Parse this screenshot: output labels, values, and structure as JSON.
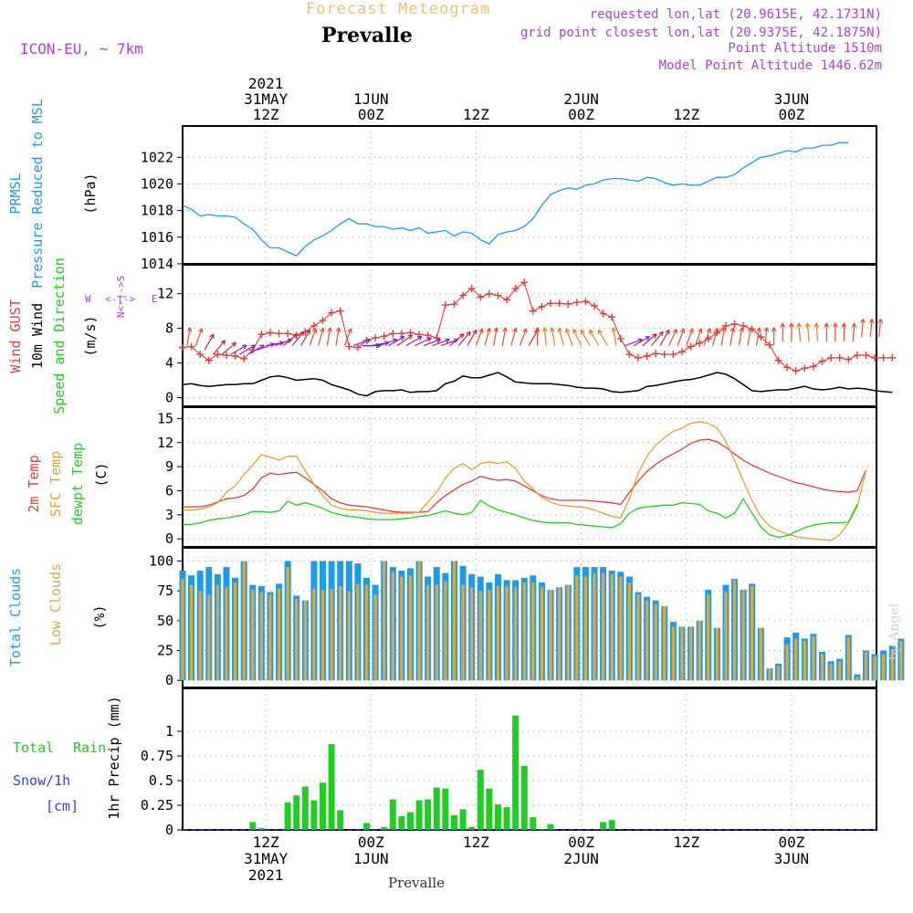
{
  "header": {
    "title": "Forecast Meteogram",
    "location": "Prevalle",
    "model": "ICON-EU, ~ 7km",
    "requested": "requested lon,lat (20.9615E, 42.1731N)",
    "grid_point": "grid point closest lon,lat (20.9375E, 42.1875N)",
    "point_altitude": "Point Altitude 1510m",
    "model_altitude": "Model Point Altitude 1446.62m",
    "footer_location": "Prevalle",
    "watermark": "by Angel"
  },
  "colors": {
    "pressure": "#1e9be6",
    "gust": "#e23c3c",
    "wind": "#000000",
    "temp2m": "#e23c3c",
    "sfc": "#e0a030",
    "dewpt": "#22cc22",
    "total_clouds": "#1e9be6",
    "low_clouds": "#d8a848",
    "rain": "#22cc22",
    "snow": "#3c3ce6",
    "compass": "#aa44cc"
  },
  "chart_data": [
    {
      "type": "line",
      "panel": "pressure",
      "ylabel": [
        "PRMSL",
        "Pressure Reduced to MSL",
        "(hPa)"
      ],
      "ylim": [
        1014,
        1023.8
      ],
      "yticks": [
        1014,
        1016,
        1018,
        1020,
        1022
      ],
      "series": [
        {
          "values": [
            1018.4,
            1018.1,
            1017.6,
            1017.7,
            1017.6,
            1017.6,
            1017.5,
            1017.0,
            1016.6,
            1015.8,
            1015.2,
            1015.2,
            1014.9,
            1014.6,
            1015.3,
            1015.8,
            1016.1,
            1016.5,
            1017.0,
            1017.4,
            1017.0,
            1017.0,
            1016.8,
            1016.8,
            1016.6,
            1016.7,
            1016.5,
            1016.7,
            1016.3,
            1016.4,
            1016.5,
            1016.1,
            1016.4,
            1016.3,
            1015.8,
            1015.5,
            1016.2,
            1016.4,
            1016.5,
            1016.8,
            1017.4,
            1018.4,
            1019.2,
            1019.5,
            1019.7,
            1019.6,
            1019.9,
            1020.0,
            1020.3,
            1020.4,
            1020.4,
            1020.3,
            1020.2,
            1020.5,
            1020.4,
            1020.1,
            1019.9,
            1020.0,
            1019.9,
            1019.9,
            1020.2,
            1020.5,
            1020.5,
            1020.7,
            1021.2,
            1021.6,
            1022.0,
            1022.1,
            1022.3,
            1022.5,
            1022.4,
            1022.7,
            1022.7,
            1022.9,
            1022.9,
            1023.1,
            1023.1
          ]
        }
      ]
    },
    {
      "type": "line",
      "panel": "wind",
      "ylabel": [
        "Wind GUST",
        "10m Wind",
        "Speed and Direction",
        "(m/s)"
      ],
      "compass": {
        "n": "N",
        "s": "S",
        "e": "E",
        "w": "W"
      },
      "ylim": [
        -1,
        14.5
      ],
      "yticks": [
        0,
        4,
        8,
        12
      ],
      "series": [
        {
          "name": "Wind GUST",
          "values": [
            5.8,
            5.9,
            5.0,
            4.3,
            5.0,
            4.9,
            4.8,
            4.5,
            5.5,
            7.3,
            7.5,
            7.4,
            7.4,
            7.2,
            7.6,
            8.3,
            8.9,
            9.8,
            10.0,
            5.9,
            5.8,
            6.6,
            6.9,
            7.1,
            7.4,
            7.4,
            7.5,
            7.3,
            7.2,
            6.9,
            10.7,
            10.8,
            11.8,
            12.6,
            11.6,
            12.0,
            11.8,
            11.3,
            12.6,
            13.3,
            10.0,
            10.5,
            10.9,
            10.9,
            10.8,
            11.0,
            11.1,
            10.6,
            9.7,
            9.3,
            6.8,
            5.0,
            4.6,
            4.8,
            5.1,
            5.0,
            5.0,
            5.3,
            5.9,
            6.3,
            6.8,
            7.5,
            8.3,
            8.5,
            8.3,
            7.9,
            7.0,
            6.1,
            4.3,
            3.5,
            3.1,
            3.4,
            3.6,
            4.2,
            4.6,
            4.6,
            4.4,
            4.9,
            4.9,
            4.6,
            4.6,
            4.6
          ]
        },
        {
          "name": "10m Wind",
          "values": [
            1.5,
            1.6,
            1.4,
            1.3,
            1.4,
            1.5,
            1.5,
            1.6,
            1.6,
            2.0,
            2.4,
            2.5,
            2.3,
            2.0,
            2.1,
            2.2,
            2.0,
            1.5,
            1.2,
            0.9,
            0.4,
            0.2,
            0.7,
            0.8,
            0.8,
            0.9,
            0.6,
            0.7,
            0.7,
            0.8,
            1.6,
            1.9,
            2.5,
            2.3,
            2.3,
            2.6,
            2.9,
            2.4,
            1.8,
            1.7,
            1.6,
            1.6,
            1.6,
            1.5,
            1.4,
            1.2,
            1.1,
            1.1,
            1.0,
            0.7,
            0.6,
            0.7,
            0.8,
            1.3,
            1.4,
            1.6,
            1.8,
            2.0,
            2.1,
            2.3,
            2.6,
            2.9,
            2.7,
            2.2,
            1.5,
            0.8,
            0.7,
            0.8,
            0.9,
            0.9,
            1.1,
            1.3,
            1.0,
            0.9,
            1.0,
            1.2,
            1.0,
            1.1,
            1.0,
            0.8,
            0.7,
            0.6
          ]
        }
      ],
      "arrows_mps": [
        6,
        6,
        5.5,
        5,
        5,
        5,
        5,
        5,
        5.5,
        6,
        6,
        6,
        6,
        6,
        6,
        6,
        6,
        6,
        6,
        6,
        6,
        6,
        6,
        6,
        6,
        6,
        6,
        6,
        6,
        6,
        6,
        6,
        6,
        6,
        6,
        6,
        6,
        6,
        6,
        6,
        6,
        6,
        6,
        6,
        6,
        6,
        6,
        6,
        6,
        6,
        6,
        6,
        6,
        6,
        6,
        6,
        6,
        6,
        6,
        6,
        6,
        6,
        6,
        6,
        6,
        6,
        6,
        6,
        6.5,
        6.5,
        6.5,
        6.5,
        6.5,
        6.5,
        6.5,
        6.5,
        6.5,
        7,
        7,
        7,
        7
      ],
      "arrows_dir": [
        190,
        200,
        210,
        220,
        230,
        240,
        240,
        240,
        250,
        260,
        250,
        230,
        220,
        210,
        200,
        195,
        190,
        190,
        200,
        250,
        270,
        260,
        250,
        240,
        235,
        240,
        245,
        250,
        250,
        250,
        230,
        220,
        210,
        200,
        195,
        190,
        190,
        195,
        200,
        210,
        180,
        175,
        170,
        165,
        160,
        155,
        150,
        150,
        150,
        170,
        250,
        240,
        230,
        220,
        210,
        205,
        200,
        200,
        200,
        200,
        195,
        190,
        190,
        190,
        190,
        190,
        185,
        180,
        180,
        180,
        175,
        175,
        175,
        180,
        180,
        180,
        185,
        185,
        185,
        185
      ]
    },
    {
      "type": "line",
      "panel": "temperature",
      "ylabel": [
        "2m Temp",
        "SFC Temp",
        "dewpt Temp",
        "(C)"
      ],
      "ylim": [
        -1,
        15.5
      ],
      "yticks": [
        0,
        3,
        6,
        9,
        12,
        15
      ],
      "series": [
        {
          "name": "2m Temp",
          "values": [
            4.0,
            4.0,
            4.0,
            4.2,
            4.6,
            5.0,
            5.1,
            5.4,
            6.2,
            7.6,
            8.2,
            8.0,
            8.2,
            8.3,
            7.6,
            6.8,
            6.0,
            5.0,
            4.5,
            4.2,
            4.1,
            4.0,
            3.8,
            3.6,
            3.4,
            3.3,
            3.3,
            3.3,
            3.4,
            4.5,
            5.4,
            6.1,
            6.8,
            7.2,
            7.8,
            7.5,
            7.3,
            7.4,
            7.2,
            6.6,
            6.0,
            5.4,
            5.0,
            4.8,
            4.8,
            4.8,
            4.8,
            4.7,
            4.6,
            4.5,
            4.3,
            5.8,
            7.2,
            8.4,
            9.3,
            10.0,
            10.6,
            11.2,
            11.9,
            12.3,
            12.4,
            12.1,
            11.4,
            10.6,
            9.8,
            9.2,
            8.7,
            8.2,
            7.8,
            7.4,
            7.0,
            6.8,
            6.5,
            6.2,
            6.0,
            5.9,
            5.8,
            6.0,
            8.6
          ]
        },
        {
          "name": "SFC Temp",
          "values": [
            3.6,
            3.6,
            3.7,
            4.0,
            4.5,
            5.8,
            6.6,
            8.0,
            9.2,
            10.5,
            10.2,
            9.8,
            10.3,
            10.3,
            8.5,
            6.8,
            5.4,
            4.2,
            3.8,
            3.6,
            3.6,
            3.5,
            3.3,
            3.2,
            3.2,
            3.2,
            3.2,
            3.3,
            4.6,
            5.8,
            7.6,
            8.8,
            9.4,
            8.6,
            9.4,
            9.6,
            9.4,
            9.6,
            8.8,
            7.2,
            6.2,
            5.2,
            4.6,
            4.2,
            4.1,
            4.0,
            3.9,
            3.6,
            3.2,
            2.8,
            2.6,
            5.0,
            8.2,
            10.3,
            11.7,
            12.6,
            13.4,
            13.8,
            14.4,
            14.6,
            14.4,
            13.8,
            12.2,
            9.8,
            7.2,
            4.8,
            2.8,
            1.6,
            1.0,
            0.6,
            0.3,
            0.1,
            0.0,
            -0.1,
            -0.2,
            0.5,
            2.0,
            4.0,
            8.6
          ]
        },
        {
          "name": "dewpt Temp",
          "values": [
            1.8,
            1.8,
            2.0,
            2.3,
            2.5,
            2.6,
            2.8,
            3.0,
            3.4,
            3.4,
            3.3,
            3.5,
            4.7,
            4.2,
            4.5,
            4.2,
            3.8,
            3.3,
            3.0,
            2.8,
            2.7,
            2.5,
            2.4,
            2.4,
            2.4,
            2.5,
            2.6,
            2.8,
            2.9,
            3.2,
            3.5,
            3.2,
            3.0,
            3.3,
            4.8,
            4.1,
            3.6,
            3.3,
            3.0,
            2.6,
            2.3,
            2.1,
            2.0,
            2.0,
            2.0,
            1.8,
            1.7,
            1.6,
            1.5,
            1.4,
            1.9,
            3.2,
            3.8,
            4.0,
            4.1,
            4.2,
            4.2,
            4.5,
            4.4,
            4.3,
            3.5,
            3.2,
            2.6,
            3.2,
            5.0,
            3.2,
            1.5,
            0.5,
            0.2,
            0.4,
            0.9,
            1.4,
            1.7,
            1.9,
            2.0,
            2.0,
            2.1,
            4.3
          ]
        }
      ]
    },
    {
      "type": "bar",
      "panel": "clouds",
      "ylabel": [
        "Total Clouds",
        "Low Clouds",
        "(%)"
      ],
      "ylim": [
        -6,
        105
      ],
      "yticks": [
        0,
        25,
        50,
        75,
        100
      ],
      "series": [
        {
          "name": "Total Clouds",
          "values": [
            92,
            88,
            92,
            95,
            89,
            95,
            86,
            100,
            80,
            79,
            74,
            81,
            100,
            71,
            67,
            100,
            100,
            100,
            100,
            100,
            98,
            86,
            80,
            100,
            95,
            92,
            94,
            100,
            87,
            95,
            90,
            100,
            96,
            89,
            87,
            82,
            89,
            84,
            84,
            86,
            88,
            82,
            76,
            78,
            80,
            95,
            95,
            95,
            95,
            92,
            91,
            87,
            74,
            70,
            67,
            62,
            49,
            45,
            45,
            50,
            76,
            44,
            80,
            85,
            76,
            81,
            44,
            10,
            14,
            36,
            40,
            35,
            39,
            24,
            16,
            18,
            38,
            5,
            25,
            22,
            25,
            29,
            35
          ]
        },
        {
          "name": "Low Clouds",
          "values": [
            85,
            80,
            75,
            72,
            80,
            78,
            82,
            100,
            76,
            74,
            72,
            77,
            95,
            68,
            67,
            77,
            76,
            77,
            79,
            75,
            81,
            80,
            72,
            100,
            91,
            87,
            88,
            100,
            80,
            80,
            83,
            100,
            80,
            78,
            75,
            76,
            79,
            79,
            78,
            82,
            82,
            78,
            76,
            78,
            80,
            88,
            87,
            90,
            90,
            89,
            87,
            82,
            72,
            67,
            64,
            62,
            45,
            45,
            45,
            50,
            72,
            44,
            74,
            84,
            76,
            79,
            44,
            10,
            12,
            30,
            35,
            33,
            37,
            22,
            14,
            16,
            36,
            3,
            24,
            20,
            22,
            25,
            33
          ]
        }
      ]
    },
    {
      "type": "bar",
      "panel": "precipitation",
      "ylabel": [
        "1hr Precip (mm)"
      ],
      "legend": [
        "Total",
        "Rain",
        "Snow/1h",
        "[cm]"
      ],
      "ylim": [
        0,
        1.25
      ],
      "yticks": [
        "0",
        "0.25",
        "0.5",
        "0.75",
        "1"
      ],
      "series": [
        {
          "name": "Total Rain",
          "x_index": [
            6,
            7,
            10,
            11,
            12,
            13,
            14,
            15,
            16,
            19,
            21,
            22,
            23,
            24,
            25,
            26,
            27,
            28,
            29,
            30,
            31,
            32,
            33,
            34,
            35,
            36,
            37,
            38,
            39,
            40,
            42,
            46,
            47
          ],
          "values": [
            0.08,
            0.02,
            0.28,
            0.35,
            0.44,
            0.3,
            0.48,
            0.87,
            0.2,
            0.07,
            0.03,
            0.31,
            0.14,
            0.18,
            0.3,
            0.31,
            0.43,
            0.42,
            0.15,
            0.21,
            0.03,
            0.61,
            0.42,
            0.26,
            0.23,
            1.16,
            0.65,
            0.13,
            0.01,
            0.06,
            0.0,
            0.08,
            0.1
          ]
        }
      ]
    }
  ],
  "xaxis": {
    "ticks": [
      {
        "top": [
          "2021",
          "31MAY",
          "12Z"
        ],
        "bottom": [
          "12Z",
          "31MAY",
          "2021"
        ],
        "hour": 12
      },
      {
        "top": [
          "1JUN",
          "00Z"
        ],
        "bottom": [
          "00Z",
          "1JUN"
        ],
        "hour": 24
      },
      {
        "top": [
          "12Z"
        ],
        "bottom": [
          "12Z"
        ],
        "hour": 36
      },
      {
        "top": [
          "2JUN",
          "00Z"
        ],
        "bottom": [
          "00Z",
          "2JUN"
        ],
        "hour": 48
      },
      {
        "top": [
          "12Z"
        ],
        "bottom": [
          "12Z"
        ],
        "hour": 60
      },
      {
        "top": [
          "3JUN",
          "00Z"
        ],
        "bottom": [
          "00Z",
          "3JUN"
        ],
        "hour": 72
      }
    ]
  }
}
